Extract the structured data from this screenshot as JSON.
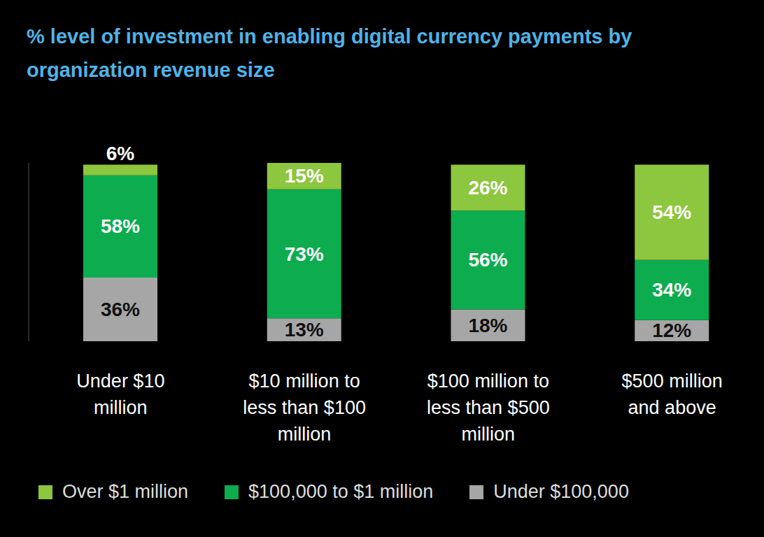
{
  "chart_data": {
    "type": "bar",
    "title": "% level of investment in enabling digital currency payments by organization revenue size",
    "categories": [
      "Under $10 million",
      "$10 million to less than $100 million",
      "$100 million to less than $500 million",
      "$500 million and above"
    ],
    "series": [
      {
        "name": "Over $1 million",
        "color": "#8dc63f",
        "values": [
          6,
          15,
          26,
          54
        ],
        "value_labels": [
          "6%",
          "15%",
          "26%",
          "54%"
        ]
      },
      {
        "name": "$100,000 to $1 million",
        "color": "#0dac4f",
        "values": [
          58,
          73,
          56,
          34
        ],
        "value_labels": [
          "58%",
          "73%",
          "56%",
          "34%"
        ]
      },
      {
        "name": "Under $100,000",
        "color": "#a6a6a6",
        "values": [
          36,
          13,
          18,
          12
        ],
        "value_labels": [
          "36%",
          "13%",
          "18%",
          "12%"
        ]
      }
    ],
    "ylim": [
      0,
      101
    ],
    "stacked": true,
    "data_labels": true,
    "tick_labels": "x",
    "legend": "bottom"
  }
}
